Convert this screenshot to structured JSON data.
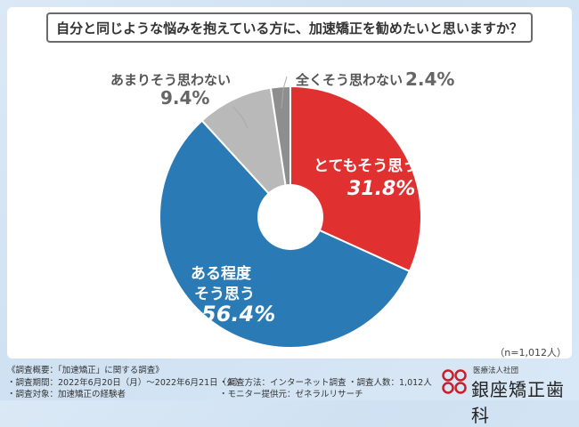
{
  "question": "自分と同じような悩みを抱えている方に、加速矯正を勧めたいと思いますか？",
  "chart_data": {
    "type": "pie",
    "categories": [
      "とてもそう思う",
      "ある程度そう思う",
      "あまりそう思わない",
      "全くそう思わない"
    ],
    "values": [
      31.8,
      56.4,
      9.4,
      2.4
    ],
    "value_labels": [
      "31.8%",
      "56.4%",
      "9.4%",
      "2.4%"
    ],
    "colors": [
      "#e03030",
      "#2a7ab5",
      "#b9b9b9",
      "#8e8e8e"
    ],
    "donut": true
  },
  "labels": {
    "totemo": "とてもそう思う",
    "aru_1": "ある程度",
    "aru_2": "そう思う",
    "amari": "あまりそう思わない",
    "mattaku": "全くそう思わない"
  },
  "n_note": "（n=1,012人）",
  "footer": {
    "overview": "《調査概要：「加速矯正」に関する調査》",
    "period": "・調査期間：2022年6月20日（月）〜2022年6月21日（火）",
    "target": "・調査対象：加速矯正の経験者",
    "method": "・調査方法：インターネット調査",
    "provider": "・モニター提供元：ゼネラルリサーチ",
    "count": "・調査人数：1,012人"
  },
  "logo": {
    "sub": "医療法人社団",
    "name": "銀座矯正歯科"
  }
}
